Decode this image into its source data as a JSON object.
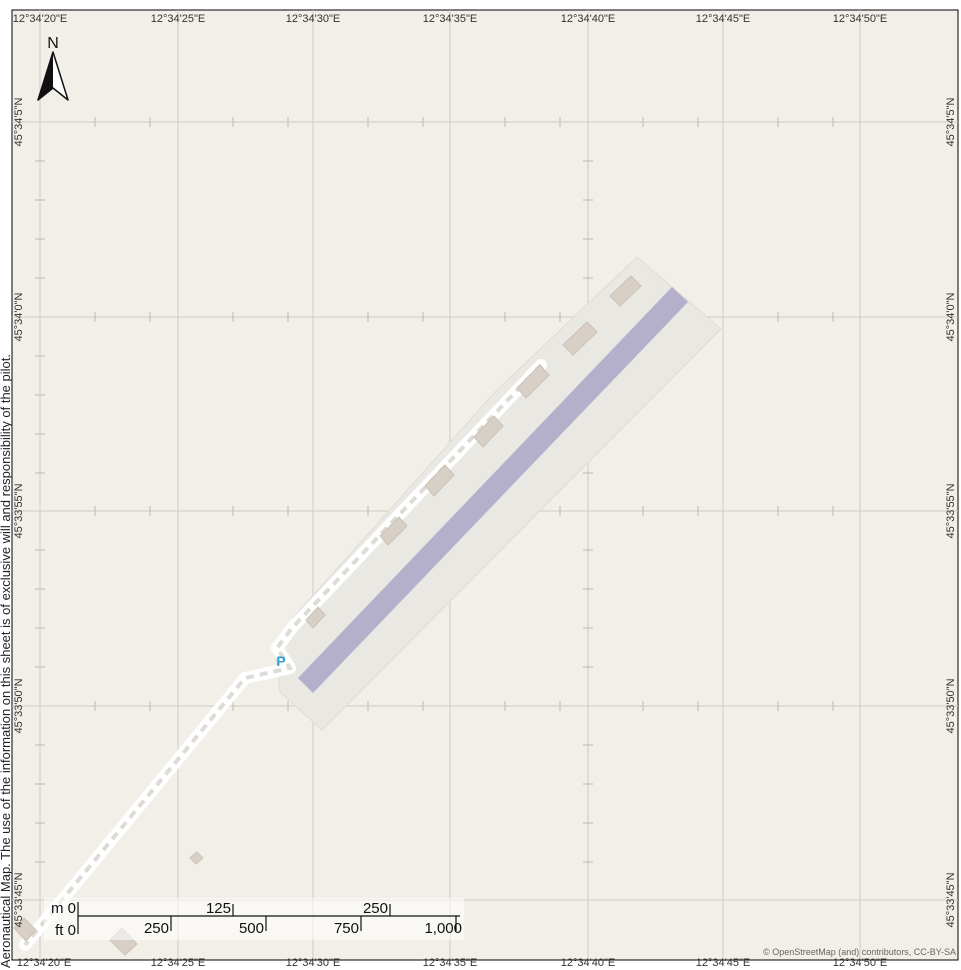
{
  "lon_labels": [
    "12°34'20\"E",
    "12°34'25\"E",
    "12°34'30\"E",
    "12°34'35\"E",
    "12°34'40\"E",
    "12°34'45\"E",
    "12°34'50\"E"
  ],
  "lat_labels": [
    "45°34'5\"N",
    "45°34'0\"N",
    "45°33'55\"N",
    "45°33'50\"N",
    "45°33'45\"N"
  ],
  "north_arrow": {
    "label": "N"
  },
  "parking_label": "P",
  "scale_bar": {
    "m_label": "m 0",
    "m_ticks": [
      "125",
      "250"
    ],
    "ft_label": "ft 0",
    "ft_ticks": [
      "250",
      "500",
      "750",
      "1,000"
    ]
  },
  "attribution": "© OpenStreetMap (and) contributors, CC-BY-SA",
  "disclaimer": "Aeronautical Map. The use of the information on this sheet is of exclusive will and responsibility of the pilot.",
  "colors": {
    "background": "#f2efe9",
    "grid": "#cfcbc3",
    "airfield": "#e9e8e3",
    "runway": "#b4b0cc",
    "building": "#d8cfc6",
    "parking": "#2f9fd8"
  }
}
